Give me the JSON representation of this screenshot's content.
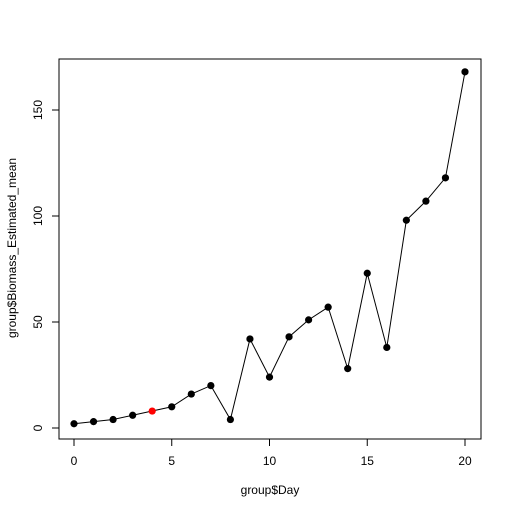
{
  "chart_data": {
    "type": "line",
    "title": "",
    "xlabel": "group$Day",
    "ylabel": "group$Biomass_Estimated_mean",
    "xlim": [
      0,
      20
    ],
    "ylim": [
      0,
      170
    ],
    "x_ticks": [
      0,
      5,
      10,
      15,
      20
    ],
    "y_ticks": [
      0,
      50,
      100,
      150
    ],
    "grid": false,
    "legend": "none",
    "line_color": "#000000",
    "point_color": "#000000",
    "series": [
      {
        "x": [
          0,
          1,
          2,
          3,
          5,
          6,
          7,
          8,
          9,
          10,
          11,
          12,
          13,
          14,
          15,
          16,
          17,
          18,
          19,
          20
        ],
        "y": [
          2,
          3,
          4,
          6,
          10,
          16,
          20,
          4,
          42,
          24,
          43,
          51,
          57,
          28,
          73,
          38,
          98,
          107,
          118,
          168
        ]
      }
    ],
    "highlight_point": {
      "x": 4,
      "y": 8,
      "color": "#ff0000"
    }
  }
}
